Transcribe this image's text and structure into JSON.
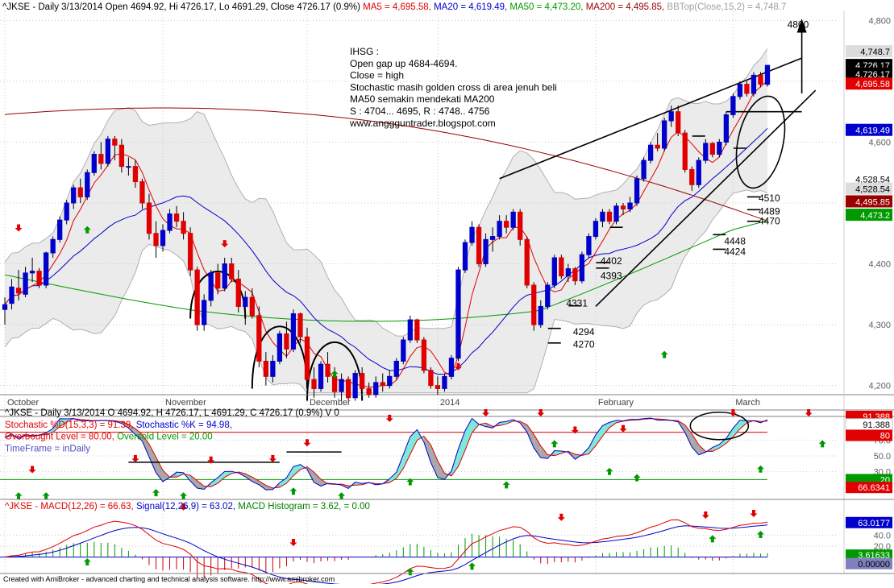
{
  "panes": {
    "price": {
      "header": [
        {
          "text": "^JKSE - Daily 3/13/2014 Open 4694.92, Hi 4726.17, Lo 4691.29, Close 4726.17 (0.9%)",
          "color": "#000000"
        },
        {
          "text": "MA5 = 4,695.58,",
          "color": "#e00000"
        },
        {
          "text": "MA20 = 4,619.49,",
          "color": "#0000cc"
        },
        {
          "text": "MA50 = 4,473.20,",
          "color": "#009900"
        },
        {
          "text": "MA200 = 4,495.85,",
          "color": "#990000"
        },
        {
          "text": "BBTop(Close,15,2) = 4,748.7",
          "color": "#a0a0a0"
        }
      ],
      "note_lines": [
        "IHSG :",
        "Open gap up 4684-4694.",
        "Close = high",
        "Stochastic masih golden cross di area jenuh beli",
        "MA50 semakin mendekati MA200",
        "S : 4704... 4695, R : 4748.. 4756",
        "www.anggguntrader.blogspot.com"
      ],
      "annotations": [
        {
          "text": "4800",
          "v": 4793,
          "d": 116
        },
        {
          "text": "4510",
          "v": 4508,
          "d": 109
        },
        {
          "text": "4489",
          "v": 4486,
          "d": 109
        },
        {
          "text": "4470",
          "v": 4470,
          "d": 109
        },
        {
          "text": "4448",
          "v": 4437,
          "d": 104
        },
        {
          "text": "4424",
          "v": 4420,
          "d": 104
        },
        {
          "text": "4402",
          "v": 4405,
          "d": 86
        },
        {
          "text": "4393",
          "v": 4380,
          "d": 86
        },
        {
          "text": "4331",
          "v": 4335,
          "d": 81
        },
        {
          "text": "4294",
          "v": 4288,
          "d": 82
        },
        {
          "text": "4270",
          "v": 4268,
          "d": 82
        }
      ],
      "y_ticks": [
        "4,200",
        "4,300",
        "4,400",
        "4,500",
        "4,600",
        "4,700",
        "4,800"
      ],
      "right_labels": [
        {
          "text": "4,748.7",
          "bg": "#dcdcdc",
          "fg": "#000000",
          "v": 4748.7
        },
        {
          "text": "4,726.17",
          "bg": "#000000",
          "fg": "#ffffff",
          "v": 4726.17
        },
        {
          "text": "4,726.17",
          "bg": "#000000",
          "fg": "#ffffff",
          "v": 4712
        },
        {
          "text": "4,695.58",
          "bg": "#e00000",
          "fg": "#ffffff",
          "v": 4695.58
        },
        {
          "text": "4,619.49",
          "bg": "#0000cc",
          "fg": "#ffffff",
          "v": 4619.49
        },
        {
          "text": "4,528.54",
          "bg": "#ffffff",
          "fg": "#000000",
          "v": 4539
        },
        {
          "text": "4,528.54",
          "bg": "#dcdcdc",
          "fg": "#000000",
          "v": 4523
        },
        {
          "text": "4,495.85",
          "bg": "#990000",
          "fg": "#ffffff",
          "v": 4502
        },
        {
          "text": "4,473.2",
          "bg": "#009900",
          "fg": "#ffffff",
          "v": 4480
        }
      ]
    },
    "stoch": {
      "header_lines": [
        [
          {
            "text": "^JKSE - Daily 3/13/2014 O 4694.92, H 4726.17, L 4691.29, C 4726.17 (0.9%) V 0",
            "color": "#000000"
          }
        ],
        [
          {
            "text": "Stochastic %D(15,3,3) = 91.39,",
            "color": "#e00000"
          },
          {
            "text": "Stochastic %K = 94.98,",
            "color": "#0000cc"
          }
        ],
        [
          {
            "text": "Overbought Level = 80.00,",
            "color": "#e00000"
          },
          {
            "text": "Oversold Level = 20.00",
            "color": "#009900"
          }
        ],
        [
          {
            "text": "TimeFrame = inDaily",
            "color": "#5050c0"
          }
        ]
      ],
      "y_ticks": [
        "30.0",
        "50.0",
        "70.0"
      ],
      "right_labels": [
        {
          "text": "91.388",
          "bg": "#e00000",
          "fg": "#ffffff",
          "v": 100
        },
        {
          "text": "91.388",
          "bg": "#ffffff",
          "fg": "#000000",
          "v": 90
        },
        {
          "text": "80",
          "bg": "#e00000",
          "fg": "#ffffff",
          "v": 76
        },
        {
          "text": "20",
          "bg": "#009900",
          "fg": "#ffffff",
          "v": 20
        },
        {
          "text": "66.6341",
          "bg": "#e00000",
          "fg": "#ffffff",
          "v": 10
        }
      ]
    },
    "macd": {
      "header": [
        {
          "text": "^JKSE - MACD(12,26) = 66.63,",
          "color": "#e00000"
        },
        {
          "text": "Signal(12,26,9) = 63.02,",
          "color": "#0000cc"
        },
        {
          "text": "MACD Histogram = 3.62, = 0.00",
          "color": "#008000"
        }
      ],
      "y_ticks": [
        "40.0",
        "20.0"
      ],
      "right_labels": [
        {
          "text": "63.0177",
          "bg": "#0000cc",
          "fg": "#ffffff",
          "v": 63
        },
        {
          "text": "3.61633",
          "bg": "#009900",
          "fg": "#ffffff",
          "v": 3.6
        },
        {
          "text": "0.00000",
          "bg": "#8080c0",
          "fg": "#000000",
          "v": -12
        }
      ]
    }
  },
  "x_labels": [
    {
      "text": "October",
      "d": 0
    },
    {
      "text": "November",
      "d": 23
    },
    {
      "text": "December",
      "d": 44
    },
    {
      "text": "2014",
      "d": 63
    },
    {
      "text": "February",
      "d": 86
    },
    {
      "text": "March",
      "d": 106
    }
  ],
  "footer": "Created with AmiBroker - advanced charting and technical analysis software. http://www.amibroker.com",
  "chart_data": {
    "type": "candlestick",
    "symbol": "^JKSE",
    "interval": "Daily",
    "price_ylim": [
      4185,
      4815
    ],
    "stoch_ylim": [
      0,
      100
    ],
    "macd_ylim": [
      -30,
      95
    ],
    "candles": [
      [
        4325,
        4345,
        4300,
        4333
      ],
      [
        4335,
        4375,
        4325,
        4362
      ],
      [
        4360,
        4390,
        4340,
        4352
      ],
      [
        4350,
        4395,
        4345,
        4385
      ],
      [
        4385,
        4410,
        4370,
        4388
      ],
      [
        4388,
        4393,
        4360,
        4365
      ],
      [
        4365,
        4420,
        4360,
        4418
      ],
      [
        4418,
        4445,
        4410,
        4440
      ],
      [
        4440,
        4478,
        4435,
        4472
      ],
      [
        4472,
        4505,
        4465,
        4500
      ],
      [
        4500,
        4530,
        4490,
        4525
      ],
      [
        4525,
        4540,
        4500,
        4510
      ],
      [
        4510,
        4555,
        4505,
        4550
      ],
      [
        4550,
        4585,
        4545,
        4580
      ],
      [
        4580,
        4600,
        4555,
        4565
      ],
      [
        4565,
        4610,
        4560,
        4605
      ],
      [
        4605,
        4610,
        4570,
        4595
      ],
      [
        4595,
        4605,
        4550,
        4560
      ],
      [
        4560,
        4575,
        4545,
        4560
      ],
      [
        4560,
        4570,
        4525,
        4535
      ],
      [
        4535,
        4540,
        4490,
        4500
      ],
      [
        4500,
        4515,
        4440,
        4450
      ],
      [
        4450,
        4470,
        4410,
        4430
      ],
      [
        4430,
        4465,
        4420,
        4455
      ],
      [
        4455,
        4490,
        4450,
        4482
      ],
      [
        4482,
        4495,
        4460,
        4470
      ],
      [
        4470,
        4485,
        4440,
        4450
      ],
      [
        4450,
        4460,
        4380,
        4390
      ],
      [
        4390,
        4395,
        4290,
        4300
      ],
      [
        4300,
        4350,
        4290,
        4340
      ],
      [
        4340,
        4390,
        4330,
        4385
      ],
      [
        4385,
        4400,
        4350,
        4360
      ],
      [
        4360,
        4410,
        4355,
        4400
      ],
      [
        4400,
        4410,
        4370,
        4375
      ],
      [
        4375,
        4390,
        4320,
        4330
      ],
      [
        4330,
        4355,
        4300,
        4345
      ],
      [
        4345,
        4360,
        4310,
        4315
      ],
      [
        4315,
        4330,
        4230,
        4240
      ],
      [
        4240,
        4255,
        4200,
        4215
      ],
      [
        4215,
        4250,
        4205,
        4240
      ],
      [
        4240,
        4290,
        4235,
        4285
      ],
      [
        4285,
        4305,
        4245,
        4260
      ],
      [
        4260,
        4325,
        4255,
        4318
      ],
      [
        4318,
        4320,
        4270,
        4280
      ],
      [
        4280,
        4295,
        4200,
        4210
      ],
      [
        4210,
        4230,
        4180,
        4195
      ],
      [
        4195,
        4240,
        4190,
        4235
      ],
      [
        4235,
        4255,
        4205,
        4215
      ],
      [
        4215,
        4230,
        4180,
        4190
      ],
      [
        4190,
        4220,
        4175,
        4210
      ],
      [
        4210,
        4215,
        4175,
        4180
      ],
      [
        4180,
        4225,
        4175,
        4220
      ],
      [
        4220,
        4230,
        4190,
        4195
      ],
      [
        4195,
        4205,
        4180,
        4185
      ],
      [
        4185,
        4215,
        4180,
        4205
      ],
      [
        4205,
        4220,
        4190,
        4200
      ],
      [
        4200,
        4225,
        4195,
        4215
      ],
      [
        4215,
        4245,
        4210,
        4240
      ],
      [
        4240,
        4280,
        4235,
        4275
      ],
      [
        4275,
        4315,
        4270,
        4308
      ],
      [
        4308,
        4310,
        4270,
        4275
      ],
      [
        4275,
        4280,
        4220,
        4225
      ],
      [
        4225,
        4230,
        4195,
        4200
      ],
      [
        4200,
        4215,
        4185,
        4195
      ],
      [
        4195,
        4220,
        4190,
        4215
      ],
      [
        4215,
        4250,
        4210,
        4245
      ],
      [
        4245,
        4395,
        4240,
        4390
      ],
      [
        4390,
        4440,
        4385,
        4435
      ],
      [
        4435,
        4470,
        4430,
        4460
      ],
      [
        4460,
        4465,
        4395,
        4400
      ],
      [
        4400,
        4450,
        4395,
        4440
      ],
      [
        4440,
        4460,
        4420,
        4445
      ],
      [
        4445,
        4480,
        4440,
        4470
      ],
      [
        4470,
        4480,
        4450,
        4460
      ],
      [
        4460,
        4490,
        4455,
        4485
      ],
      [
        4485,
        4490,
        4430,
        4440
      ],
      [
        4440,
        4445,
        4360,
        4365
      ],
      [
        4365,
        4370,
        4290,
        4300
      ],
      [
        4300,
        4340,
        4295,
        4330
      ],
      [
        4330,
        4370,
        4325,
        4365
      ],
      [
        4365,
        4415,
        4360,
        4410
      ],
      [
        4410,
        4415,
        4375,
        4380
      ],
      [
        4380,
        4400,
        4370,
        4392
      ],
      [
        4392,
        4395,
        4365,
        4372
      ],
      [
        4372,
        4420,
        4368,
        4415
      ],
      [
        4415,
        4450,
        4410,
        4445
      ],
      [
        4445,
        4475,
        4440,
        4470
      ],
      [
        4470,
        4490,
        4460,
        4485
      ],
      [
        4485,
        4490,
        4465,
        4470
      ],
      [
        4470,
        4500,
        4465,
        4495
      ],
      [
        4495,
        4500,
        4480,
        4490
      ],
      [
        4490,
        4510,
        4485,
        4500
      ],
      [
        4500,
        4545,
        4495,
        4540
      ],
      [
        4540,
        4575,
        4535,
        4570
      ],
      [
        4570,
        4600,
        4565,
        4595
      ],
      [
        4595,
        4615,
        4585,
        4590
      ],
      [
        4590,
        4640,
        4585,
        4635
      ],
      [
        4635,
        4660,
        4625,
        4650
      ],
      [
        4650,
        4660,
        4610,
        4615
      ],
      [
        4615,
        4620,
        4550,
        4555
      ],
      [
        4555,
        4560,
        4520,
        4530
      ],
      [
        4530,
        4575,
        4525,
        4570
      ],
      [
        4570,
        4605,
        4565,
        4598
      ],
      [
        4598,
        4600,
        4575,
        4580
      ],
      [
        4580,
        4605,
        4575,
        4600
      ],
      [
        4600,
        4650,
        4595,
        4645
      ],
      [
        4645,
        4680,
        4640,
        4675
      ],
      [
        4675,
        4700,
        4670,
        4695
      ],
      [
        4695,
        4700,
        4675,
        4680
      ],
      [
        4680,
        4715,
        4675,
        4710
      ],
      [
        4710,
        4715,
        4690,
        4695
      ],
      [
        4694.92,
        4726.17,
        4691.29,
        4726.17
      ]
    ]
  }
}
